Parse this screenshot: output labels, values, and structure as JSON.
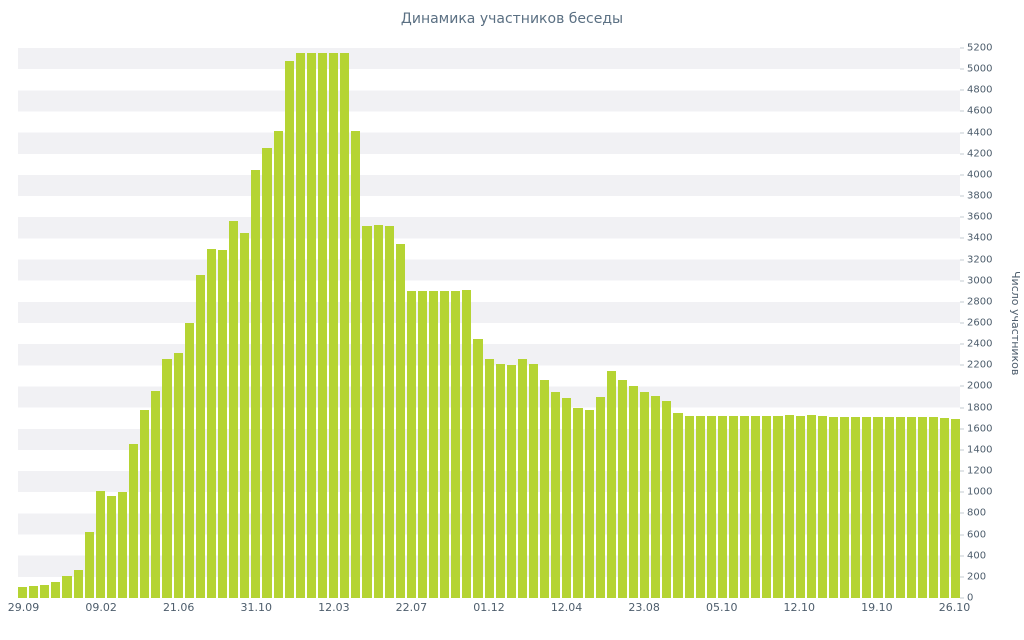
{
  "colors": {
    "bar": "#b5d433",
    "title": "#5b7083",
    "tick": "#4d5d6c",
    "stripe": "#f1f1f4",
    "dash": "#c3cbd1"
  },
  "chart_data": {
    "type": "bar",
    "title": "Динамика участников беседы",
    "xlabel": "",
    "ylabel": "Число участников",
    "ylim": [
      0,
      5200
    ],
    "grid": "horizontal-stripes",
    "legend": "none",
    "y_ticks": [
      0,
      200,
      400,
      600,
      800,
      1000,
      1200,
      1400,
      1600,
      1800,
      2000,
      2200,
      2400,
      2600,
      2800,
      3000,
      3200,
      3400,
      3600,
      3800,
      4000,
      4200,
      4400,
      4600,
      4800,
      5000,
      5200
    ],
    "x_tick_labels": [
      "29.09",
      "09.02",
      "21.06",
      "31.10",
      "12.03",
      "22.07",
      "01.12",
      "12.04",
      "23.08",
      "05.10",
      "12.10",
      "19.10",
      "26.10"
    ],
    "x_tick_every": 7,
    "values": [
      100,
      110,
      125,
      155,
      205,
      265,
      620,
      1010,
      960,
      1000,
      1460,
      1780,
      1960,
      2260,
      2320,
      2600,
      3050,
      3300,
      3290,
      3560,
      3450,
      4050,
      4250,
      4420,
      5080,
      5150,
      5150,
      5150,
      5150,
      5150,
      4420,
      3520,
      3530,
      3520,
      3350,
      2900,
      2900,
      2900,
      2900,
      2900,
      2910,
      2450,
      2260,
      2210,
      2200,
      2260,
      2210,
      2060,
      1950,
      1890,
      1800,
      1780,
      1900,
      2150,
      2060,
      2000,
      1950,
      1910,
      1860,
      1750,
      1720,
      1720,
      1720,
      1720,
      1720,
      1720,
      1720,
      1720,
      1720,
      1730,
      1720,
      1730,
      1720,
      1710,
      1710,
      1710,
      1710,
      1710,
      1710,
      1710,
      1710,
      1710,
      1710,
      1700,
      1690
    ]
  }
}
